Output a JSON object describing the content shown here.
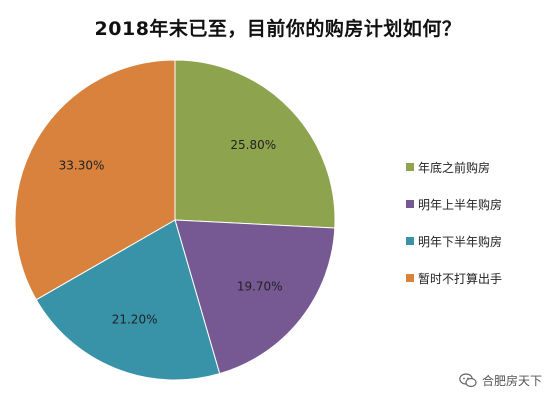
{
  "chart_data": {
    "type": "pie",
    "title": "2018年末已至，目前你的购房计划如何？",
    "categories": [
      "年底之前购房",
      "明年上半年购房",
      "明年下半年购房",
      "暂时不打算出手"
    ],
    "values": [
      25.8,
      19.7,
      21.2,
      33.3
    ],
    "labels": [
      "25.80%",
      "19.70%",
      "21.20%",
      "33.30%"
    ],
    "colors": [
      "#8da34e",
      "#765993",
      "#3892a8",
      "#d8823e"
    ],
    "legend_position": "right",
    "start_angle_deg": 0,
    "direction": "clockwise"
  },
  "watermark": {
    "text": "合肥房天下",
    "icon": "wechat-icon"
  }
}
